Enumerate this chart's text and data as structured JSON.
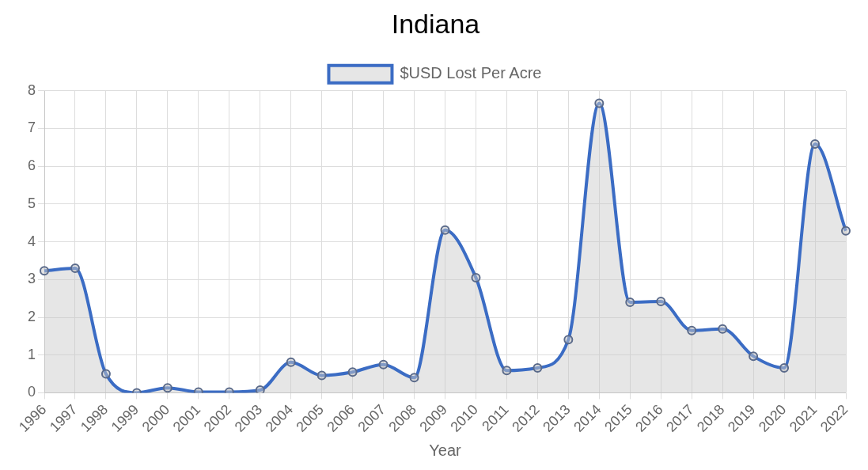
{
  "chart_data": {
    "type": "area",
    "title": "Indiana",
    "xlabel": "Year",
    "categories": [
      "1996",
      "1997",
      "1998",
      "1999",
      "2000",
      "2001",
      "2002",
      "2003",
      "2004",
      "2005",
      "2006",
      "2007",
      "2008",
      "2009",
      "2010",
      "2011",
      "2012",
      "2013",
      "2014",
      "2015",
      "2016",
      "2017",
      "2018",
      "2019",
      "2020",
      "2021",
      "2022"
    ],
    "series": [
      {
        "name": "$USD Lost Per Acre",
        "color": "#3b6cc4",
        "values": [
          3.23,
          3.3,
          0.5,
          0,
          0.13,
          0.02,
          0.02,
          0.07,
          0.81,
          0.46,
          0.55,
          0.75,
          0.4,
          4.31,
          3.05,
          0.59,
          0.66,
          1.41,
          7.67,
          2.4,
          2.42,
          1.65,
          1.69,
          0.97,
          0.66,
          6.59,
          4.29
        ]
      }
    ],
    "ylim": [
      0,
      8
    ],
    "yticks": [
      0,
      1,
      2,
      3,
      4,
      5,
      6,
      7,
      8
    ],
    "grid": true,
    "legend": "top",
    "marker": "circle"
  }
}
